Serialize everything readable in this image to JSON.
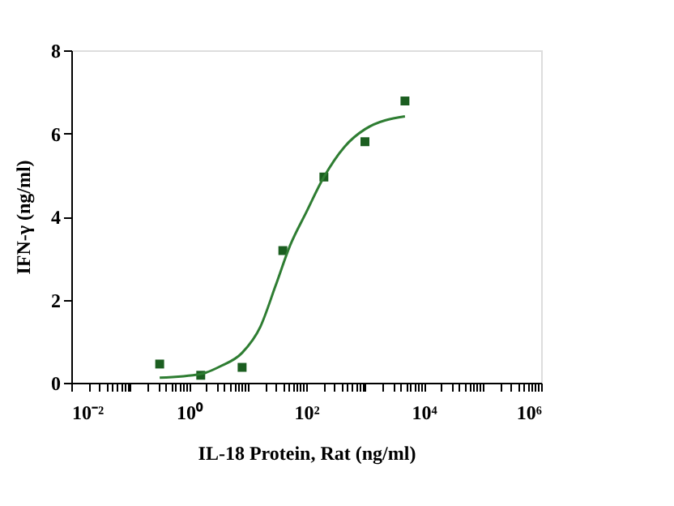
{
  "chart_data": {
    "type": "scatter",
    "xlabel": "IL-18 Protein, Rat  (ng/ml)",
    "ylabel": "IFN-γ (ng/ml)",
    "log": "x",
    "grid": false,
    "xlim": [
      0.01,
      1000000
    ],
    "ylim": [
      0,
      8
    ],
    "yticks": [
      0,
      2,
      4,
      6,
      8
    ],
    "xticks": [
      {
        "value": 0.01,
        "label": "10⁻²"
      },
      {
        "value": 0.02,
        "label": null
      },
      {
        "value": 0.03,
        "label": null
      },
      {
        "value": 0.04,
        "label": null
      },
      {
        "value": 0.05,
        "label": null
      },
      {
        "value": 0.06,
        "label": null
      },
      {
        "value": 0.07,
        "label": null
      },
      {
        "value": 0.08,
        "label": null
      },
      {
        "value": 0.09,
        "label": null
      },
      {
        "value": 0.1,
        "label": null
      },
      {
        "value": 0.2,
        "label": null
      },
      {
        "value": 0.3,
        "label": null
      },
      {
        "value": 0.4,
        "label": null
      },
      {
        "value": 0.5,
        "label": null
      },
      {
        "value": 0.6,
        "label": null
      },
      {
        "value": 0.7,
        "label": null
      },
      {
        "value": 0.8,
        "label": null
      },
      {
        "value": 0.9,
        "label": null
      },
      {
        "value": 1,
        "label": "10⁰"
      },
      {
        "value": 2,
        "label": null
      },
      {
        "value": 3,
        "label": null
      },
      {
        "value": 4,
        "label": null
      },
      {
        "value": 5,
        "label": null
      },
      {
        "value": 6,
        "label": null
      },
      {
        "value": 7,
        "label": null
      },
      {
        "value": 8,
        "label": null
      },
      {
        "value": 9,
        "label": null
      },
      {
        "value": 10,
        "label": null
      },
      {
        "value": 20,
        "label": null
      },
      {
        "value": 30,
        "label": null
      },
      {
        "value": 40,
        "label": null
      },
      {
        "value": 50,
        "label": null
      },
      {
        "value": 60,
        "label": null
      },
      {
        "value": 70,
        "label": null
      },
      {
        "value": 80,
        "label": null
      },
      {
        "value": 90,
        "label": null
      },
      {
        "value": 100,
        "label": "10²"
      },
      {
        "value": 200,
        "label": null
      },
      {
        "value": 300,
        "label": null
      },
      {
        "value": 400,
        "label": null
      },
      {
        "value": 500,
        "label": null
      },
      {
        "value": 600,
        "label": null
      },
      {
        "value": 700,
        "label": null
      },
      {
        "value": 800,
        "label": null
      },
      {
        "value": 900,
        "label": null
      },
      {
        "value": 1000,
        "label": null
      },
      {
        "value": 2000,
        "label": null
      },
      {
        "value": 3000,
        "label": null
      },
      {
        "value": 4000,
        "label": null
      },
      {
        "value": 5000,
        "label": null
      },
      {
        "value": 6000,
        "label": null
      },
      {
        "value": 7000,
        "label": null
      },
      {
        "value": 8000,
        "label": null
      },
      {
        "value": 9000,
        "label": null
      },
      {
        "value": 10000,
        "label": "10⁴"
      },
      {
        "value": 20000,
        "label": null
      },
      {
        "value": 30000,
        "label": null
      },
      {
        "value": 40000,
        "label": null
      },
      {
        "value": 50000,
        "label": null
      },
      {
        "value": 60000,
        "label": null
      },
      {
        "value": 70000,
        "label": null
      },
      {
        "value": 80000,
        "label": null
      },
      {
        "value": 90000,
        "label": null
      },
      {
        "value": 100000,
        "label": null
      },
      {
        "value": 200000,
        "label": null
      },
      {
        "value": 300000,
        "label": null
      },
      {
        "value": 400000,
        "label": null
      },
      {
        "value": 500000,
        "label": null
      },
      {
        "value": 600000,
        "label": null
      },
      {
        "value": 700000,
        "label": null
      },
      {
        "value": 800000,
        "label": null
      },
      {
        "value": 900000,
        "label": null
      },
      {
        "value": 1000000,
        "label": "10⁶"
      }
    ],
    "series": [
      {
        "marker": "square",
        "color": "#1b5e20",
        "x": [
          0.32,
          1.6,
          8.1,
          40,
          200,
          1000,
          4800
        ],
        "values": [
          0.45,
          0.18,
          0.37,
          3.18,
          4.95,
          5.8,
          6.78
        ]
      },
      {
        "type": "line",
        "marker": "none",
        "line_style": "solid",
        "color": "#2e7d32",
        "x": [
          0.32,
          1.6,
          3.5,
          8.1,
          16.6,
          30,
          53,
          100,
          200,
          450,
          1000,
          4800
        ],
        "values": [
          0.12,
          0.21,
          0.4,
          0.72,
          1.35,
          2.33,
          3.3,
          4.1,
          4.95,
          5.68,
          6.1,
          6.41
        ]
      }
    ]
  }
}
